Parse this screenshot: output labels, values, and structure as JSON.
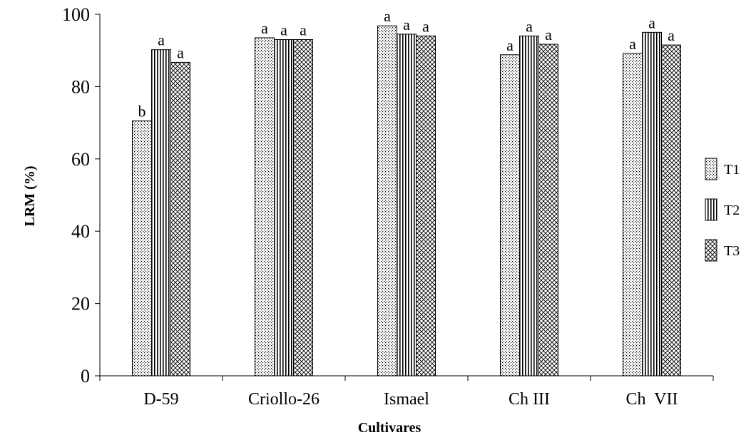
{
  "chart_data": {
    "type": "bar",
    "xlabel": "Cultivares",
    "ylabel": "LRM (%)",
    "ylim": [
      0,
      100
    ],
    "yticks": [
      0,
      20,
      40,
      60,
      80,
      100
    ],
    "categories": [
      "D-59",
      "Criollo-26",
      "Ismael",
      "Ch III",
      "Ch  VII"
    ],
    "series": [
      {
        "name": "T1",
        "pattern": "dots",
        "values": [
          70.5,
          93.5,
          96.8,
          88.8,
          89.2
        ],
        "letters": [
          "b",
          "a",
          "a",
          "a",
          "a"
        ]
      },
      {
        "name": "T2",
        "pattern": "vertical-lines",
        "values": [
          90.2,
          93.0,
          94.5,
          94.0,
          95.0
        ],
        "letters": [
          "a",
          "a",
          "a",
          "a",
          "a"
        ]
      },
      {
        "name": "T3",
        "pattern": "crosshatch",
        "values": [
          86.7,
          93.0,
          94.0,
          91.7,
          91.5
        ],
        "letters": [
          "a",
          "a",
          "a",
          "a",
          "a"
        ]
      }
    ],
    "legend_position": "right",
    "grid": false
  }
}
